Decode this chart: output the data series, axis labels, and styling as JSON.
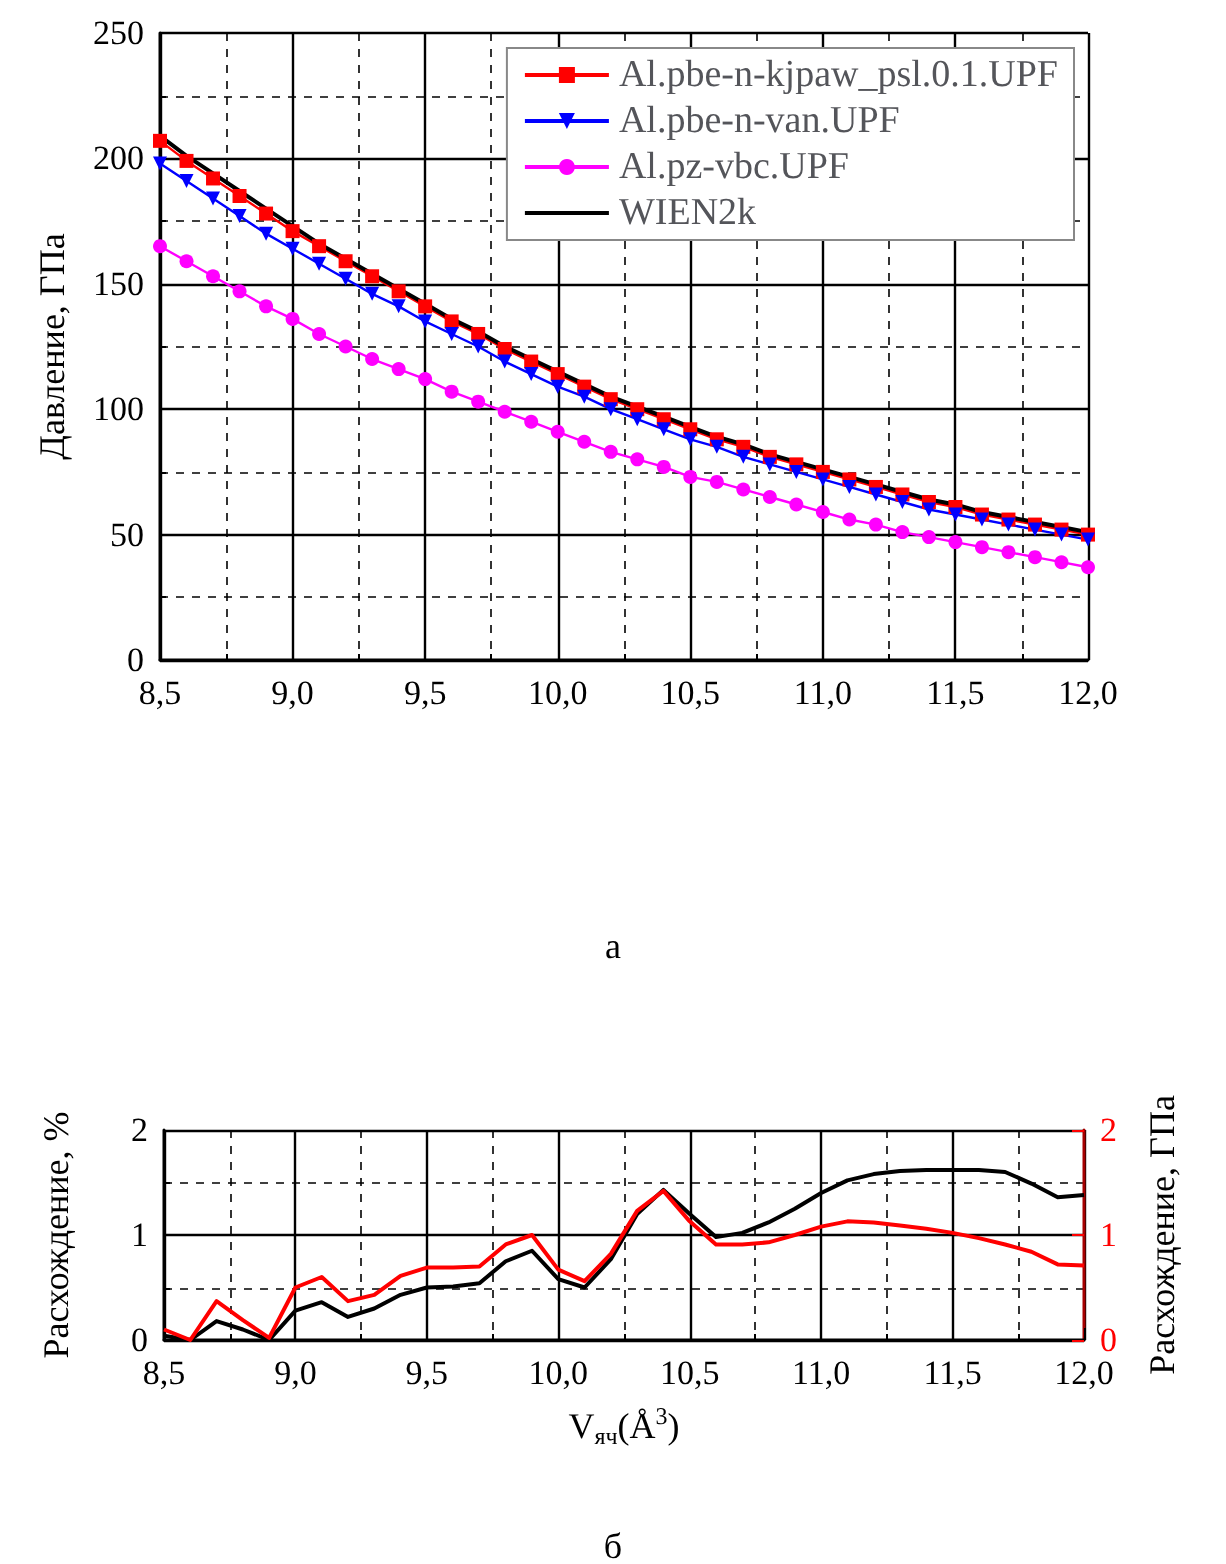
{
  "chart_data": [
    {
      "type": "line",
      "ylabel": "Давление, ГПа",
      "annotations": [
        "а"
      ],
      "x": [
        8.5,
        8.6,
        8.7,
        8.8,
        8.9,
        9.0,
        9.1,
        9.2,
        9.3,
        9.4,
        9.5,
        9.6,
        9.7,
        9.8,
        9.9,
        10.0,
        10.1,
        10.2,
        10.3,
        10.4,
        10.5,
        10.6,
        10.7,
        10.8,
        10.9,
        11.0,
        11.1,
        11.2,
        11.3,
        11.4,
        11.5,
        11.6,
        11.7,
        11.8,
        11.9,
        12.0
      ],
      "series": [
        {
          "name": "Al.pbe-n-kjpaw_psl.0.1.UPF",
          "color": "#ff0000",
          "marker": "square",
          "values": [
            207,
            199,
            192,
            185,
            178,
            171,
            165,
            159,
            153,
            147,
            141,
            135,
            130,
            124,
            119,
            114,
            109,
            104,
            100,
            96,
            92,
            88,
            85,
            81,
            78,
            75,
            72,
            69,
            66,
            63,
            61,
            58,
            56,
            54,
            52,
            50
          ]
        },
        {
          "name": "Al.pbe-n-van.UPF",
          "color": "#0000ff",
          "marker": "triangle",
          "values": [
            198,
            191,
            184,
            177,
            170,
            164,
            158,
            152,
            146,
            141,
            135,
            130,
            125,
            119,
            114,
            109,
            105,
            100,
            96,
            92,
            88,
            85,
            81,
            78,
            75,
            72,
            69,
            66,
            63,
            60,
            58,
            56,
            54,
            52,
            50,
            48
          ]
        },
        {
          "name": "Al.pz-vbc.UPF",
          "color": "#ff00ff",
          "marker": "circle",
          "values": [
            165,
            159,
            153,
            147,
            141,
            136,
            130,
            125,
            120,
            116,
            112,
            107,
            103,
            99,
            95,
            91,
            87,
            83,
            80,
            77,
            73,
            71,
            68,
            65,
            62,
            59,
            56,
            54,
            51,
            49,
            47,
            45,
            43,
            41,
            39,
            37
          ]
        },
        {
          "name": "WIEN2k",
          "color": "#000000",
          "marker": "none",
          "values": [
            209,
            201,
            194,
            187,
            180,
            173,
            166,
            160,
            154,
            148,
            142,
            136,
            131,
            125,
            120,
            115,
            110,
            105,
            101,
            97,
            93,
            89,
            86,
            82,
            79,
            76,
            73,
            70,
            67,
            64,
            62,
            59,
            57,
            55,
            53,
            51
          ]
        }
      ],
      "xlim": [
        8.5,
        12.0
      ],
      "xticks": [
        {
          "value": 8.5,
          "label": "8,5"
        },
        {
          "value": 8.75,
          "label": null
        },
        {
          "value": 9.0,
          "label": "9,0"
        },
        {
          "value": 9.25,
          "label": null
        },
        {
          "value": 9.5,
          "label": "9,5"
        },
        {
          "value": 9.75,
          "label": null
        },
        {
          "value": 10.0,
          "label": "10,0"
        },
        {
          "value": 10.25,
          "label": null
        },
        {
          "value": 10.5,
          "label": "10,5"
        },
        {
          "value": 10.75,
          "label": null
        },
        {
          "value": 11.0,
          "label": "11,0"
        },
        {
          "value": 11.25,
          "label": null
        },
        {
          "value": 11.5,
          "label": "11,5"
        },
        {
          "value": 11.75,
          "label": null
        },
        {
          "value": 12.0,
          "label": "12,0"
        }
      ],
      "ylim": [
        0,
        250
      ],
      "yticks": [
        0,
        {
          "value": 25,
          "label": null
        },
        50,
        {
          "value": 75,
          "label": null
        },
        100,
        {
          "value": 125,
          "label": null
        },
        150,
        {
          "value": 175,
          "label": null
        },
        200,
        {
          "value": 225,
          "label": null
        },
        250
      ],
      "grid": true,
      "legend": "top right"
    },
    {
      "type": "line",
      "ylabel": "Расхождение, %",
      "y2label": "Расхождение, ГПа",
      "xlabel": "V$_{яч}$(Å$^{3}$)",
      "annotations": [
        "б"
      ],
      "x": [
        8.5,
        8.6,
        8.7,
        8.8,
        8.9,
        9.0,
        9.1,
        9.2,
        9.3,
        9.4,
        9.5,
        9.6,
        9.7,
        9.8,
        9.9,
        10.0,
        10.1,
        10.2,
        10.3,
        10.4,
        10.5,
        10.6,
        10.7,
        10.8,
        10.9,
        11.0,
        11.1,
        11.2,
        11.3,
        11.4,
        11.5,
        11.6,
        11.7,
        11.8,
        11.9,
        12.0
      ],
      "series": [
        {
          "color": "#000000",
          "values": [
            0.04,
            0,
            0.18,
            0.1,
            0,
            0.28,
            0.36,
            0.22,
            0.3,
            0.43,
            0.5,
            0.51,
            0.54,
            0.75,
            0.85,
            0.58,
            0.5,
            0.77,
            1.2,
            1.43,
            1.2,
            0.98,
            1.02,
            1.12,
            1.25,
            1.4,
            1.52,
            1.58,
            1.61,
            1.62,
            1.62,
            1.62,
            1.6,
            1.49,
            1.36,
            1.38
          ]
        },
        {
          "color": "#ff0000",
          "axis": "y2",
          "values": [
            0.1,
            0,
            0.37,
            0.19,
            0.02,
            0.5,
            0.6,
            0.37,
            0.43,
            0.61,
            0.69,
            0.69,
            0.7,
            0.91,
            1.0,
            0.67,
            0.56,
            0.82,
            1.23,
            1.42,
            1.13,
            0.91,
            0.91,
            0.93,
            1.0,
            1.08,
            1.13,
            1.12,
            1.09,
            1.06,
            1.02,
            0.97,
            0.91,
            0.84,
            0.72,
            0.71
          ]
        }
      ],
      "xlim": [
        8.5,
        12.0
      ],
      "xticks": [
        {
          "value": 8.5,
          "label": "8,5"
        },
        {
          "value": 8.75,
          "label": null
        },
        {
          "value": 9.0,
          "label": "9,0"
        },
        {
          "value": 9.25,
          "label": null
        },
        {
          "value": 9.5,
          "label": "9,5"
        },
        {
          "value": 9.75,
          "label": null
        },
        {
          "value": 10.0,
          "label": "10,0"
        },
        {
          "value": 10.25,
          "label": null
        },
        {
          "value": 10.5,
          "label": "10,5"
        },
        {
          "value": 10.75,
          "label": null
        },
        {
          "value": 11.0,
          "label": "11,0"
        },
        {
          "value": 11.25,
          "label": null
        },
        {
          "value": 11.5,
          "label": "11,5"
        },
        {
          "value": 11.75,
          "label": null
        },
        {
          "value": 12.0,
          "label": "12,0"
        }
      ],
      "ylim": [
        0,
        2
      ],
      "yticks": [
        0,
        {
          "value": 0.5,
          "label": null
        },
        1,
        {
          "value": 1.5,
          "label": null
        },
        2
      ],
      "y2lim": [
        0,
        2
      ],
      "y2ticks": [
        0,
        1,
        2
      ],
      "grid": true,
      "legend": false
    }
  ]
}
